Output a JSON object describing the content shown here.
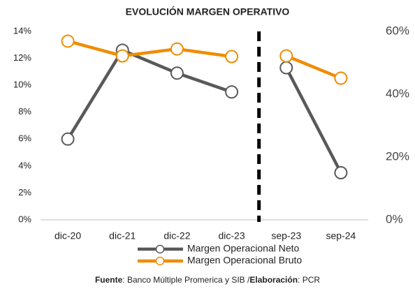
{
  "chart_data": {
    "type": "line",
    "title": "EVOLUCIÓN MARGEN OPERATIVO",
    "categories": [
      "dic-20",
      "dic-21",
      "dic-22",
      "dic-23",
      "sep-23",
      "sep-24"
    ],
    "series": [
      {
        "name": "Margen Operacional Neto",
        "color": "#595959",
        "values": [
          6.0,
          12.6,
          10.9,
          9.5,
          11.3,
          3.5
        ]
      },
      {
        "name": "Margen Operacional Bruto",
        "color": "#f08c00",
        "axis": "y2",
        "values": [
          56.9,
          52.2,
          54.4,
          52.0,
          52.2,
          45.1
        ]
      }
    ],
    "ylim": [
      0,
      14
    ],
    "yticks": [
      {
        "value": 0,
        "label": "0%"
      },
      {
        "value": 2,
        "label": "2%"
      },
      {
        "value": 4,
        "label": "4%"
      },
      {
        "value": 6,
        "label": "6%"
      },
      {
        "value": 8,
        "label": "8%"
      },
      {
        "value": 10,
        "label": "10%"
      },
      {
        "value": 12,
        "label": "12%"
      },
      {
        "value": 14,
        "label": "14%"
      }
    ],
    "y2lim": [
      0,
      60
    ],
    "y2ticks": [
      {
        "value": 0,
        "label": "0%"
      },
      {
        "value": 20,
        "label": "20%"
      },
      {
        "value": 40,
        "label": "40%"
      },
      {
        "value": 60,
        "label": "60%"
      }
    ],
    "divider_after_index": 3,
    "legend": "bottom",
    "source": [
      {
        "text": "Fuente",
        "bold": true
      },
      {
        "text": ": Banco Múltiple Promerica y SIB /"
      },
      {
        "text": "Elaboración",
        "bold": true
      },
      {
        "text": ": PCR"
      }
    ]
  }
}
